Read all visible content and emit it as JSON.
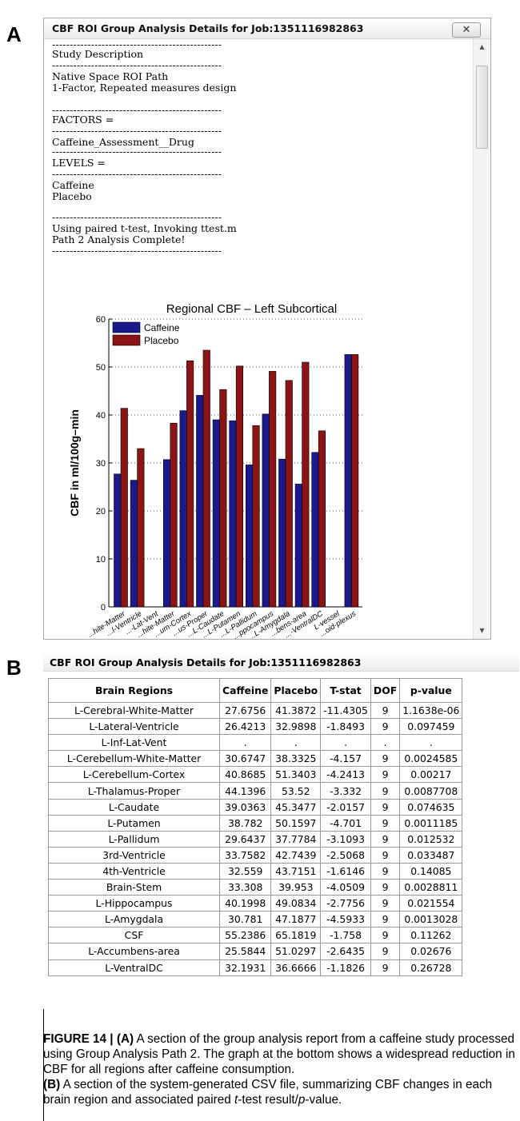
{
  "panel_a": {
    "letter": "A",
    "window_title": "CBF ROI Group Analysis Details for Job:1351116982863",
    "close_label": "✕",
    "report_lines": {
      "dash": "------------------------------------------------",
      "study_description": "Study Description",
      "roi_path": "Native Space ROI Path",
      "design": "1-Factor, Repeated measures design",
      "factors": "FACTORS =",
      "factor_name": "Caffeine_Assessment__Drug",
      "levels": "LEVELS =",
      "level_1": "Caffeine",
      "level_2": "Placebo",
      "ttest": "Using paired t-test, Invoking ttest.m",
      "complete": "Path 2 Analysis Complete!"
    }
  },
  "chart_data": {
    "type": "bar",
    "title": "Regional CBF – Left Subcortical",
    "ylabel": "CBF in ml/100g–min",
    "xlabel": "",
    "ylim": [
      0,
      60
    ],
    "yticks": [
      0,
      10,
      20,
      30,
      40,
      50,
      60
    ],
    "grid": "horizontal dotted",
    "legend_position": "top-left",
    "categories": [
      "...hite-Matter",
      "...l-Ventricle",
      "...-Lat-Vent",
      "...hite-Matter",
      "...um-Cortex",
      "...us-Proper",
      "...L-Caudate",
      "...L-Putamen",
      "...L-Pallidum",
      "...ppocampus",
      "...L-Amygdala",
      "...bens-area",
      "...-VentralDC",
      "L-vessel",
      "...oid-plexus"
    ],
    "series": [
      {
        "name": "Caffeine",
        "color": "#1a1a8c",
        "values": [
          27.7,
          26.4,
          null,
          30.7,
          40.9,
          44.1,
          39.0,
          38.8,
          29.6,
          40.2,
          30.8,
          25.6,
          32.2,
          null,
          52.6
        ]
      },
      {
        "name": "Placebo",
        "color": "#8b1414",
        "values": [
          41.4,
          33.0,
          null,
          38.3,
          51.3,
          53.5,
          45.3,
          50.2,
          37.8,
          49.1,
          47.2,
          51.0,
          36.7,
          null,
          52.6
        ]
      }
    ]
  },
  "panel_b": {
    "letter": "B",
    "title": "CBF ROI Group Analysis Details for Job:1351116982863",
    "headers": [
      "Brain Regions",
      "Caffeine",
      "Placebo",
      "T-stat",
      "DOF",
      "p-value"
    ],
    "rows": [
      [
        "L-Cerebral-White-Matter",
        "27.6756",
        "41.3872",
        "-11.4305",
        "9",
        "1.1638e-06"
      ],
      [
        "L-Lateral-Ventricle",
        "26.4213",
        "32.9898",
        "-1.8493",
        "9",
        "0.097459"
      ],
      [
        "L-Inf-Lat-Vent",
        ".",
        ".",
        ".",
        ".",
        "."
      ],
      [
        "L-Cerebellum-White-Matter",
        "30.6747",
        "38.3325",
        "-4.157",
        "9",
        "0.0024585"
      ],
      [
        "L-Cerebellum-Cortex",
        "40.8685",
        "51.3403",
        "-4.2413",
        "9",
        "0.00217"
      ],
      [
        "L-Thalamus-Proper",
        "44.1396",
        "53.52",
        "-3.332",
        "9",
        "0.0087708"
      ],
      [
        "L-Caudate",
        "39.0363",
        "45.3477",
        "-2.0157",
        "9",
        "0.074635"
      ],
      [
        "L-Putamen",
        "38.782",
        "50.1597",
        "-4.701",
        "9",
        "0.0011185"
      ],
      [
        "L-Pallidum",
        "29.6437",
        "37.7784",
        "-3.1093",
        "9",
        "0.012532"
      ],
      [
        "3rd-Ventricle",
        "33.7582",
        "42.7439",
        "-2.5068",
        "9",
        "0.033487"
      ],
      [
        "4th-Ventricle",
        "32.559",
        "43.7151",
        "-1.6146",
        "9",
        "0.14085"
      ],
      [
        "Brain-Stem",
        "33.308",
        "39.953",
        "-4.0509",
        "9",
        "0.0028811"
      ],
      [
        "L-Hippocampus",
        "40.1998",
        "49.0834",
        "-2.7756",
        "9",
        "0.021554"
      ],
      [
        "L-Amygdala",
        "30.781",
        "47.1877",
        "-4.5933",
        "9",
        "0.0013028"
      ],
      [
        "CSF",
        "55.2386",
        "65.1819",
        "-1.758",
        "9",
        "0.11262"
      ],
      [
        "L-Accumbens-area",
        "25.5844",
        "51.0297",
        "-2.6435",
        "9",
        "0.02676"
      ],
      [
        "L-VentralDC",
        "32.1931",
        "36.6666",
        "-1.1826",
        "9",
        "0.26728"
      ]
    ]
  },
  "caption": {
    "label": "FIGURE 14 | ",
    "a_marker": "(A)",
    "text_a": " A section of the group analysis report from a caffeine study processed using Group Analysis Path 2. The graph at the bottom shows a widespread reduction in CBF for all regions after caffeine consumption.",
    "b_marker": "(B)",
    "text_b1": " A section of the system-generated CSV file, summarizing CBF changes in each brain region and associated paired ",
    "t_italic": "t",
    "text_b2": "-test result/",
    "p_italic": "p",
    "text_b3": "-value."
  }
}
